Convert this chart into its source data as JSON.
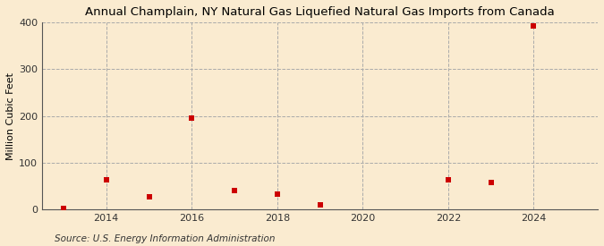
{
  "title": "Annual Champlain, NY Natural Gas Liquefied Natural Gas Imports from Canada",
  "ylabel": "Million Cubic Feet",
  "source": "Source: U.S. Energy Information Administration",
  "background_color": "#faebd0",
  "plot_bg_color": "#faebd0",
  "marker_color": "#cc0000",
  "marker_size": 18,
  "years": [
    2013,
    2014,
    2015,
    2016,
    2017,
    2018,
    2019,
    2022,
    2023,
    2024
  ],
  "values": [
    1,
    63,
    27,
    195,
    40,
    32,
    10,
    63,
    57,
    393
  ],
  "xlim": [
    2012.5,
    2025.5
  ],
  "ylim": [
    0,
    400
  ],
  "yticks": [
    0,
    100,
    200,
    300,
    400
  ],
  "xticks": [
    2014,
    2016,
    2018,
    2020,
    2022,
    2024
  ],
  "grid_color": "#aaaaaa",
  "grid_linestyle": "--",
  "grid_linewidth": 0.7,
  "title_fontsize": 9.5,
  "axis_fontsize": 8,
  "source_fontsize": 7.5
}
